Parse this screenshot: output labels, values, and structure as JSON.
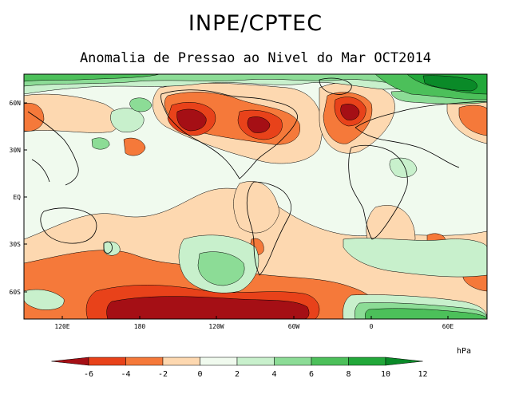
{
  "title": "INPE/CPTEC",
  "subtitle": "Anomalia de Pressao ao Nivel do Mar OCT2014",
  "lat_labels": [
    "60N",
    "30N",
    "EQ",
    "30S",
    "60S"
  ],
  "lon_labels": [
    "120E",
    "180",
    "120W",
    "60W",
    "0",
    "60E"
  ],
  "colorbar": {
    "unit": "hPa",
    "ticks": [
      "-6",
      "-4",
      "-2",
      "0",
      "2",
      "4",
      "6",
      "8",
      "10",
      "12"
    ],
    "colors": [
      "#a50f15",
      "#e8421a",
      "#f5793a",
      "#fdd8b0",
      "#f0faee",
      "#c8f0cc",
      "#8cdc96",
      "#4cc05a",
      "#22a83a",
      "#0a8a28"
    ]
  }
}
